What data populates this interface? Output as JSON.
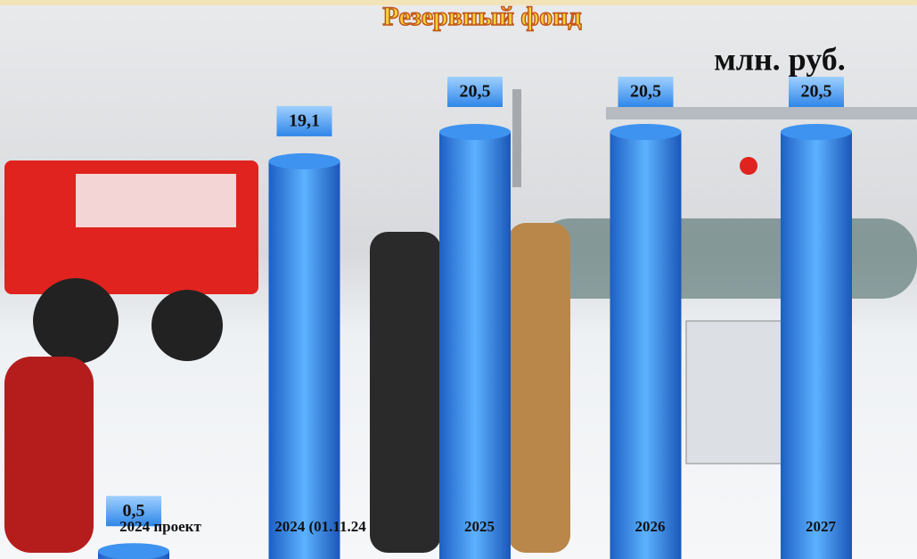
{
  "chart_data": {
    "type": "bar",
    "title": "Резервный фонд",
    "unit_label": "млн. руб.",
    "categories": [
      "2024 проект",
      "2024 (01.11.24",
      "2025",
      "2026",
      "2027"
    ],
    "values": [
      0.5,
      19.1,
      20.5,
      20.5,
      20.5
    ],
    "value_labels": [
      "0,5",
      "19,1",
      "20,5",
      "20,5",
      "20,5"
    ],
    "color": "#2f7fe0"
  }
}
